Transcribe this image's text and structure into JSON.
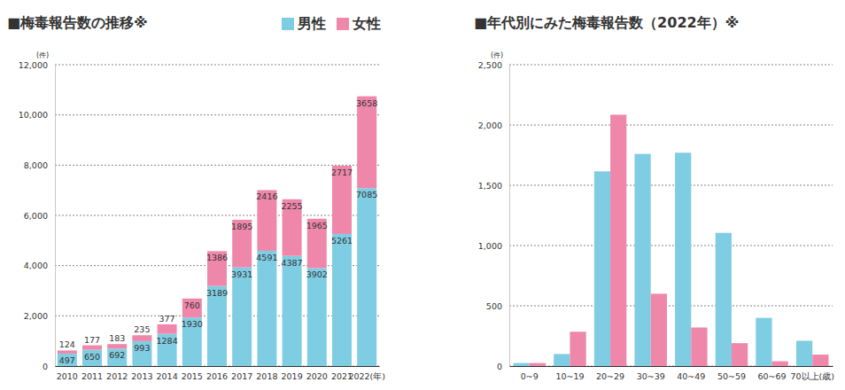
{
  "chart_data": [
    {
      "type": "bar",
      "title": "■梅毒報告数の推移※",
      "y_label": "(件)",
      "categories": [
        "2010",
        "2011",
        "2012",
        "2013",
        "2014",
        "2015",
        "2016",
        "2017",
        "2018",
        "2019",
        "2020",
        "2021",
        "2022(年)"
      ],
      "series": [
        {
          "name": "男性",
          "color": "#7fcde3",
          "values": [
            497,
            650,
            692,
            993,
            1284,
            1930,
            3189,
            3931,
            4591,
            4387,
            3902,
            5261,
            7085
          ]
        },
        {
          "name": "女性",
          "color": "#ee87aa",
          "values": [
            124,
            177,
            183,
            235,
            377,
            760,
            1386,
            1895,
            2416,
            2255,
            1965,
            2717,
            3658
          ]
        }
      ],
      "stacked": true,
      "data_labels": true,
      "legend": "top-right",
      "ylim": [
        0,
        12000
      ],
      "yticks": [
        0,
        {
          "value": 2000,
          "label": "2,000"
        },
        {
          "value": 4000,
          "label": "4,000"
        },
        {
          "value": 6000,
          "label": "6,000"
        },
        {
          "value": 8000,
          "label": "8,000"
        },
        {
          "value": 10000,
          "label": "10,000"
        },
        {
          "value": 12000,
          "label": "12,000"
        }
      ],
      "grid": true
    },
    {
      "type": "bar",
      "title": "■年代別にみた梅毒報告数（2022年）※",
      "y_label": "(件)",
      "categories": [
        "0~9",
        "10~19",
        "20~29",
        "30~39",
        "40~49",
        "50~59",
        "60~69",
        "70以上(歳)"
      ],
      "series": [
        {
          "color": "#7fcde3",
          "values": [
            25,
            100,
            1615,
            1760,
            1770,
            1105,
            400,
            210
          ]
        },
        {
          "color": "#ee87aa",
          "values": [
            25,
            285,
            2085,
            600,
            320,
            190,
            40,
            95
          ]
        }
      ],
      "stacked": false,
      "ylim": [
        0,
        2500
      ],
      "yticks": [
        0,
        {
          "value": 500,
          "label": "500"
        },
        {
          "value": 1000,
          "label": "1,000"
        },
        {
          "value": 1500,
          "label": "1,500"
        },
        {
          "value": 2000,
          "label": "2,000"
        },
        {
          "value": 2500,
          "label": "2,500"
        }
      ],
      "grid": true
    }
  ]
}
